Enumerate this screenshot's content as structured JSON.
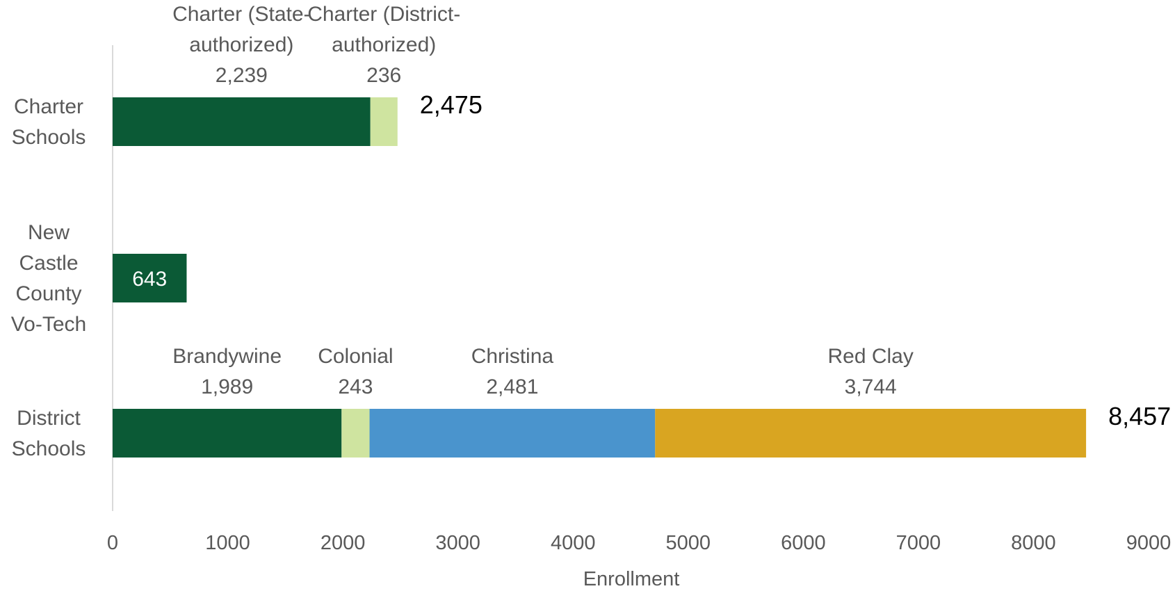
{
  "chart_data": {
    "type": "bar",
    "orientation": "horizontal",
    "stacked": true,
    "xlabel": "Enrollment",
    "ylabel": "",
    "xlim": [
      0,
      9000
    ],
    "x_ticks": [
      "0",
      "1000",
      "2000",
      "3000",
      "4000",
      "5000",
      "6000",
      "7000",
      "8000",
      "9000"
    ],
    "grid": false,
    "legend": "none",
    "categories": [
      {
        "name": "Charter Schools",
        "label_lines": [
          "Charter",
          "Schools"
        ],
        "total_label": "2,475",
        "segments": [
          {
            "label_lines": [
              "Charter (State-",
              "authorized)"
            ],
            "value": 2239,
            "value_label": "2,239",
            "color": "#0b5a36"
          },
          {
            "label_lines": [
              "Charter (District-",
              "authorized)"
            ],
            "value": 236,
            "value_label": "236",
            "color": "#cfe4a0"
          }
        ]
      },
      {
        "name": "New Castle County Vo-Tech",
        "label_lines": [
          "New",
          "Castle",
          "County",
          "Vo-Tech"
        ],
        "total_label": "",
        "segments": [
          {
            "label_lines": [],
            "value": 643,
            "value_label": "643",
            "color": "#0b5a36",
            "label_inside": true
          }
        ]
      },
      {
        "name": "District Schools",
        "label_lines": [
          "District",
          "Schools"
        ],
        "total_label": "8,457",
        "segments": [
          {
            "label_lines": [
              "Brandywine"
            ],
            "value": 1989,
            "value_label": "1,989",
            "color": "#0b5a36"
          },
          {
            "label_lines": [
              "Colonial"
            ],
            "value": 243,
            "value_label": "243",
            "color": "#cfe4a0"
          },
          {
            "label_lines": [
              "Christina"
            ],
            "value": 2481,
            "value_label": "2,481",
            "color": "#4a94cd"
          },
          {
            "label_lines": [
              "Red Clay"
            ],
            "value": 3744,
            "value_label": "3,744",
            "color": "#d9a521"
          }
        ]
      }
    ]
  }
}
